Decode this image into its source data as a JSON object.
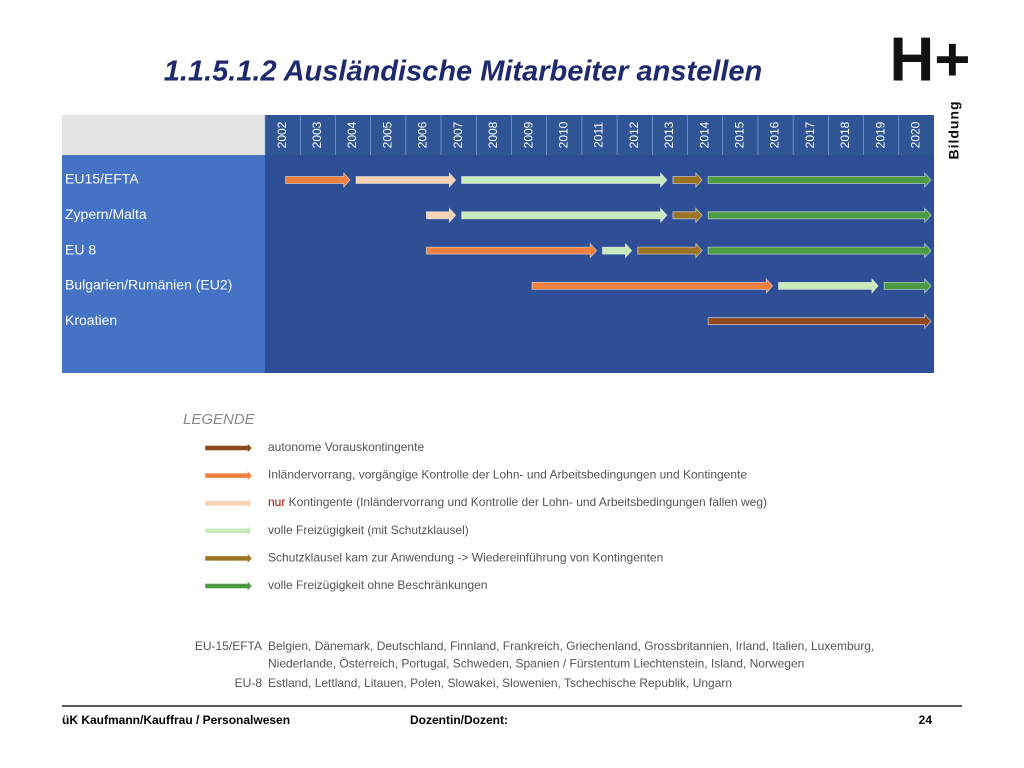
{
  "title": "1.1.5.1.2 Ausländische Mitarbeiter anstellen",
  "logo": {
    "mark": "H+",
    "word": "Bildung"
  },
  "years": [
    2002,
    2003,
    2004,
    2005,
    2006,
    2007,
    2008,
    2009,
    2010,
    2011,
    2012,
    2013,
    2014,
    2015,
    2016,
    2017,
    2018,
    2019,
    2020
  ],
  "rows": [
    {
      "label": "EU15/EFTA",
      "segments": [
        {
          "start": 2002.5,
          "end": 2004.5,
          "kind": 1
        },
        {
          "start": 2004.5,
          "end": 2007.5,
          "kind": 2
        },
        {
          "start": 2007.5,
          "end": 2013.5,
          "kind": 3
        },
        {
          "start": 2013.5,
          "end": 2014.5,
          "kind": 4
        },
        {
          "start": 2014.5,
          "end": 2021,
          "kind": 5
        }
      ]
    },
    {
      "label": "Zypern/Malta",
      "segments": [
        {
          "start": 2006.5,
          "end": 2007.5,
          "kind": 2
        },
        {
          "start": 2007.5,
          "end": 2013.5,
          "kind": 3
        },
        {
          "start": 2013.5,
          "end": 2014.5,
          "kind": 4
        },
        {
          "start": 2014.5,
          "end": 2021,
          "kind": 5
        }
      ]
    },
    {
      "label": "EU 8",
      "segments": [
        {
          "start": 2006.5,
          "end": 2011.5,
          "kind": 1
        },
        {
          "start": 2011.5,
          "end": 2012.5,
          "kind": 3
        },
        {
          "start": 2012.5,
          "end": 2014.5,
          "kind": 4
        },
        {
          "start": 2014.5,
          "end": 2021,
          "kind": 5
        }
      ]
    },
    {
      "label": "Bulgarien/Rumänien (EU2)",
      "segments": [
        {
          "start": 2009.5,
          "end": 2016.5,
          "kind": 1
        },
        {
          "start": 2016.5,
          "end": 2019.5,
          "kind": 3
        },
        {
          "start": 2019.5,
          "end": 2021,
          "kind": 5
        }
      ]
    },
    {
      "label": "Kroatien",
      "segments": [
        {
          "start": 2014.5,
          "end": 2021,
          "kind": 0
        }
      ]
    }
  ],
  "legend": {
    "title": "LEGENDE",
    "items": [
      {
        "color": "#8e4a1e",
        "text": "autonome Vorauskontingente"
      },
      {
        "color": "#f08040",
        "text": "Inländervorrang, vorgängige Kontrolle der Lohn- und Arbeitsbedingungen und Kontingente"
      },
      {
        "color": "#f7d3b4",
        "highlight": "nur",
        "text": " Kontingente (Inländervorrang und Kontrolle der Lohn- und Arbeitsbedingungen fallen weg)"
      },
      {
        "color": "#c8ebbb",
        "text": "volle Freizügigkeit (mit Schutzklausel)"
      },
      {
        "color": "#9a7422",
        "text": "Schutzklausel kam zur Anwendung -> Wiedereinführung von Kontingenten"
      },
      {
        "color": "#4c9b42",
        "text": "volle Freizügigkeit ohne Beschränkungen"
      }
    ]
  },
  "notes": [
    {
      "term": "EU-15/EFTA",
      "lines": [
        "Belgien, Dänemark, Deutschland, Finnland, Frankreich, Griechenland, Grossbritannien, Irland, Italien, Luxemburg,",
        "Niederlande, Österreich, Portugal, Schweden, Spanien  /  Fürstentum Liechtenstein, Island, Norwegen"
      ]
    },
    {
      "term": "EU-8",
      "lines": [
        "Estland, Lettland, Litauen, Polen, Slowakei, Slowenien, Tschechische Republik, Ungarn"
      ]
    }
  ],
  "footer": {
    "left": "üK Kaufmann/Kauffrau / Personalwesen",
    "center": "Dozentin/Dozent:",
    "page": "24"
  }
}
